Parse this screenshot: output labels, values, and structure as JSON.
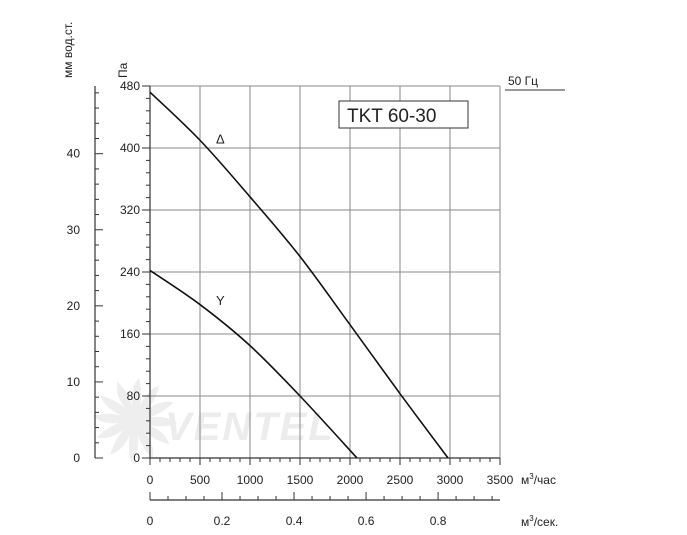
{
  "chart_data": {
    "type": "line",
    "title": "TKT 60-30",
    "frequency_label": "50 Гц",
    "x_primary": {
      "label": "м³/час",
      "ticks": [
        0,
        500,
        1000,
        1500,
        2000,
        2500,
        3000,
        3500
      ],
      "range": [
        0,
        3500
      ]
    },
    "x_secondary": {
      "label": "м³/сек.",
      "ticks": [
        "0",
        "0.2",
        "0.4",
        "0.6",
        "0.8"
      ],
      "tick_values": [
        0,
        0.2,
        0.4,
        0.6,
        0.8
      ],
      "range": [
        0,
        0.972
      ]
    },
    "y_primary": {
      "label": "Па",
      "ticks": [
        0,
        80,
        160,
        240,
        320,
        400,
        480
      ],
      "range": [
        0,
        480
      ]
    },
    "y_secondary": {
      "label": "мм вод.ст.",
      "ticks": [
        0,
        10,
        20,
        30,
        40
      ],
      "range": [
        0,
        48.9
      ]
    },
    "grid": true,
    "series": [
      {
        "name": "Δ",
        "x": [
          0,
          500,
          1000,
          1500,
          2000,
          2500,
          2980
        ],
        "y": [
          472,
          410,
          337,
          260,
          172,
          83,
          0
        ]
      },
      {
        "name": "Y",
        "x": [
          0,
          500,
          1000,
          1500,
          2070
        ],
        "y": [
          242,
          198,
          145,
          80,
          0
        ]
      }
    ],
    "watermark": "VENTEL"
  }
}
